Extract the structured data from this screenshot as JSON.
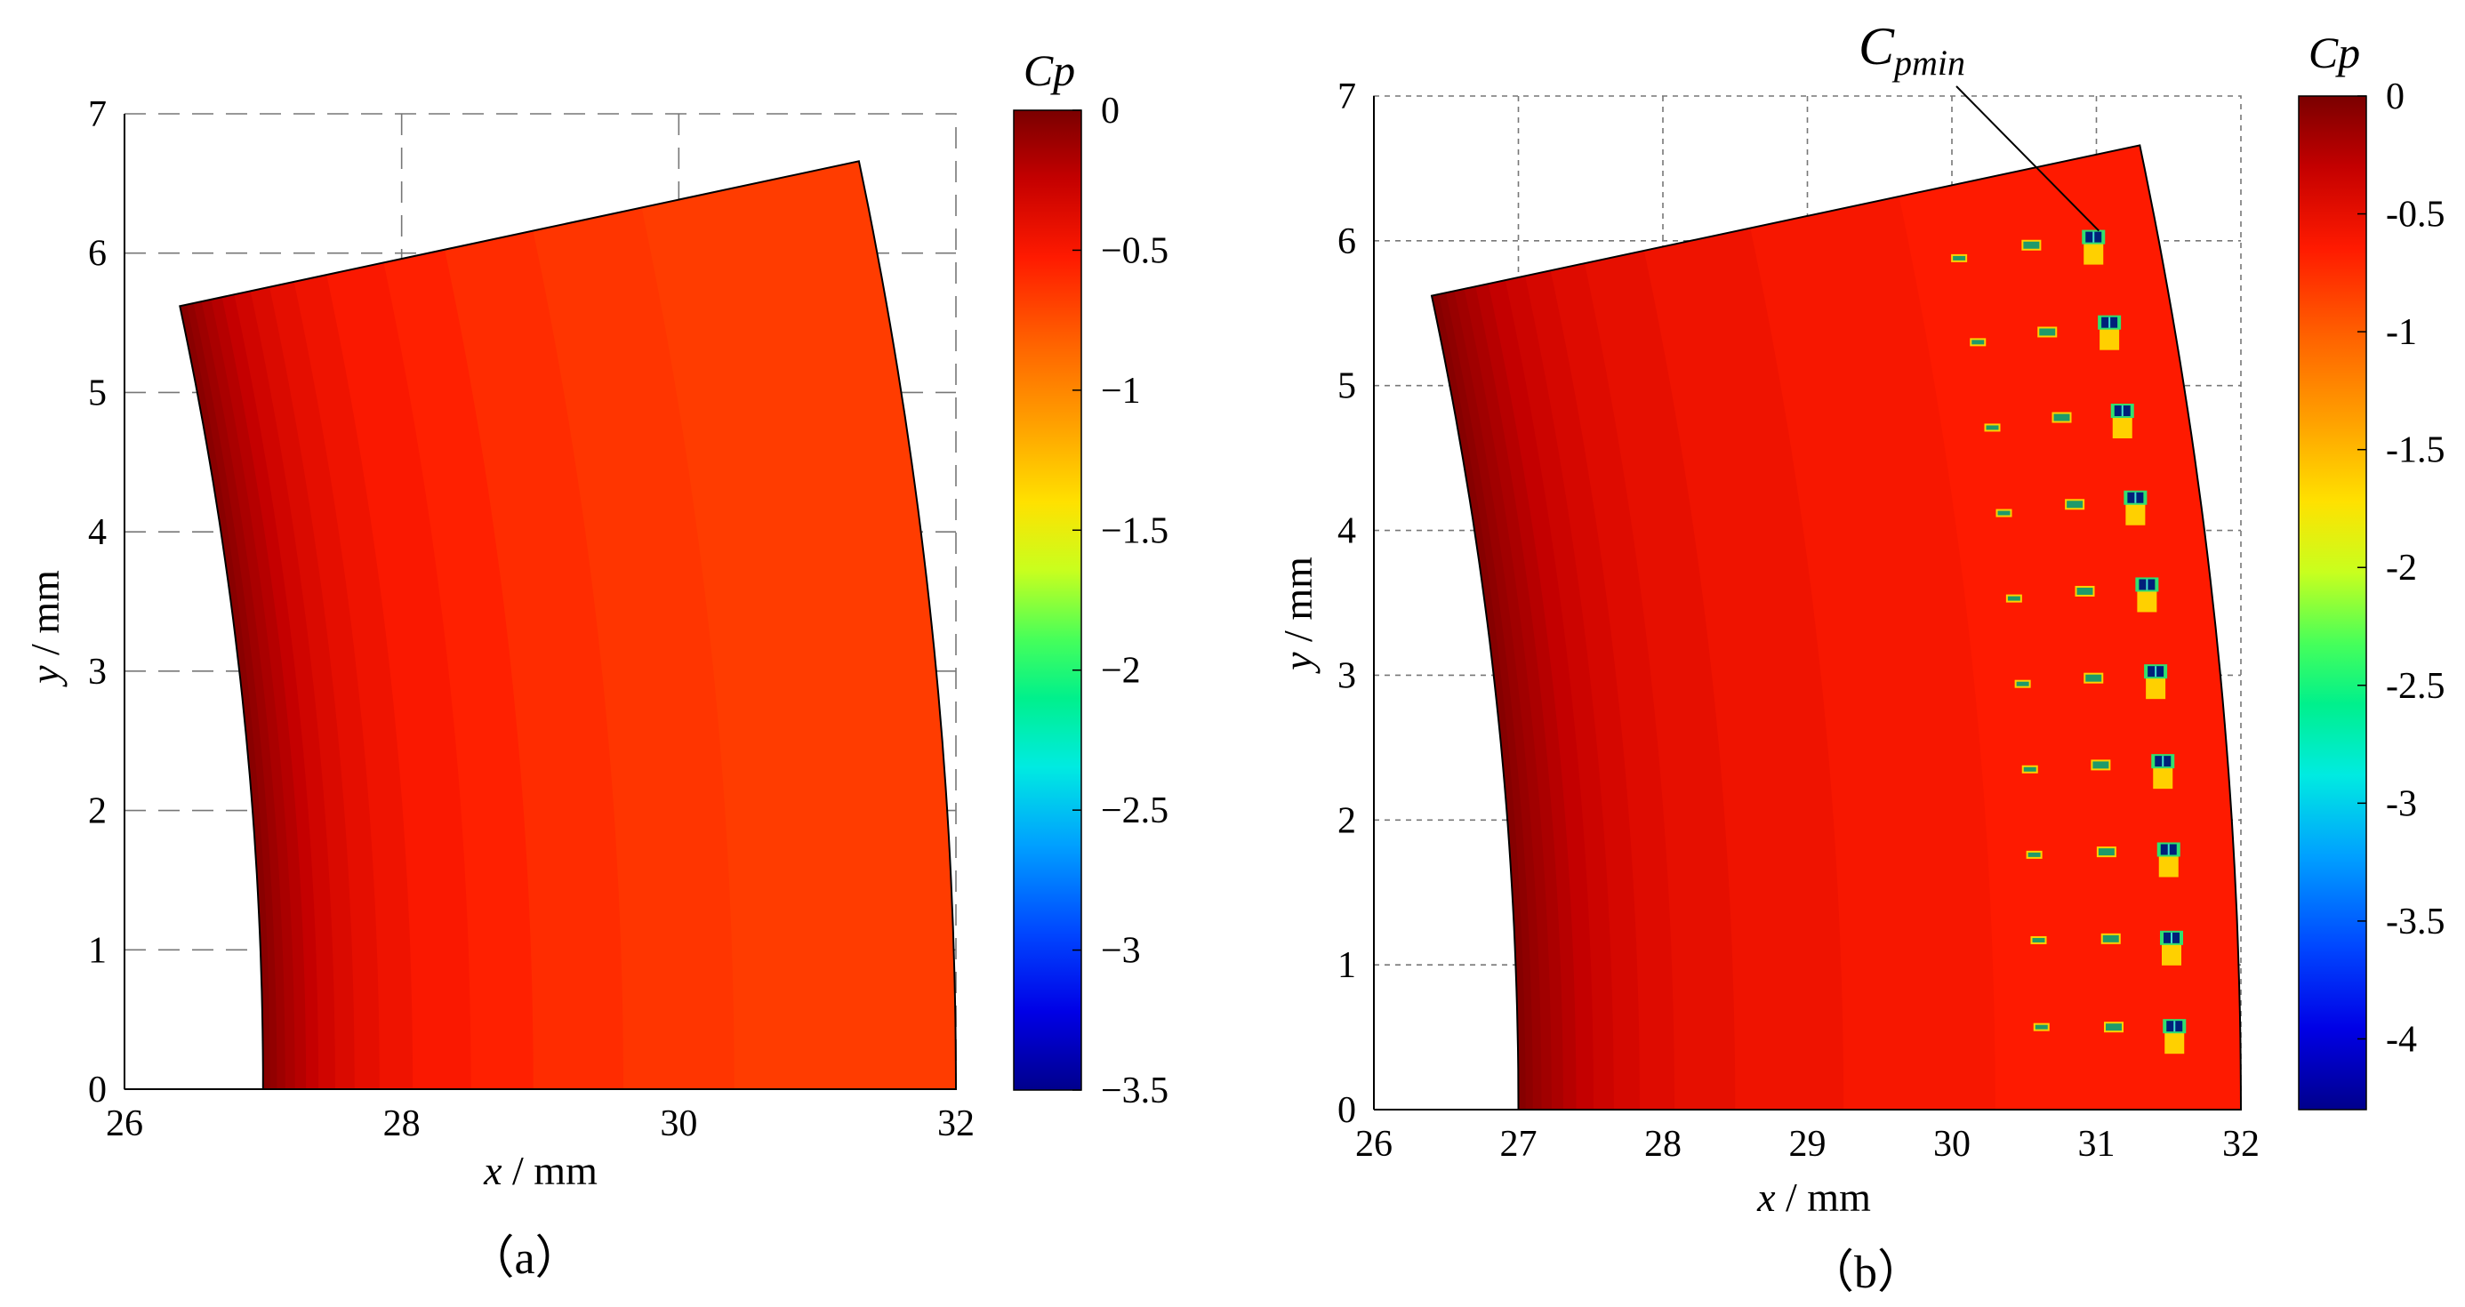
{
  "chart_data": [
    {
      "type": "heatmap",
      "panel_label": "（a）",
      "xlabel_var": "x",
      "xlabel_unit": " / mm",
      "ylabel_var": "y",
      "ylabel_unit": " / mm",
      "xlim": [
        26,
        32
      ],
      "ylim": [
        0,
        7
      ],
      "xticks": [
        "26",
        "28",
        "30",
        "32"
      ],
      "yticks": [
        "0",
        "1",
        "2",
        "3",
        "4",
        "5",
        "6",
        "7"
      ],
      "grid": "dashed",
      "colorbar": {
        "title": "Cp",
        "range": [
          -3.5,
          0
        ],
        "ticks": [
          "0",
          "−0.5",
          "−1",
          "−1.5",
          "−2",
          "−2.5",
          "−3",
          "−3.5"
        ],
        "tick_values": [
          0,
          -0.5,
          -1,
          -1.5,
          -2,
          -2.5,
          -3,
          -3.5
        ]
      },
      "domain": {
        "top_left": [
          26.4,
          5.62
        ],
        "top_right": [
          31.3,
          6.66
        ],
        "bottom_left": [
          27.0,
          0
        ],
        "bottom_right": [
          32.0,
          0
        ]
      },
      "bands": [
        {
          "x": 27.0,
          "cp": -0.02
        },
        {
          "x": 27.05,
          "cp": -0.05
        },
        {
          "x": 27.1,
          "cp": -0.08
        },
        {
          "x": 27.16,
          "cp": -0.12
        },
        {
          "x": 27.23,
          "cp": -0.16
        },
        {
          "x": 27.31,
          "cp": -0.2
        },
        {
          "x": 27.4,
          "cp": -0.25
        },
        {
          "x": 27.52,
          "cp": -0.3
        },
        {
          "x": 27.66,
          "cp": -0.35
        },
        {
          "x": 27.84,
          "cp": -0.4
        },
        {
          "x": 28.08,
          "cp": -0.45
        },
        {
          "x": 28.5,
          "cp": -0.5
        },
        {
          "x": 28.95,
          "cp": -0.55
        },
        {
          "x": 29.6,
          "cp": -0.6
        },
        {
          "x": 30.4,
          "cp": -0.64
        },
        {
          "x": 32.0,
          "cp": -0.67
        }
      ],
      "spots": []
    },
    {
      "type": "heatmap",
      "panel_label": "（b）",
      "xlabel_var": "x",
      "xlabel_unit": " / mm",
      "ylabel_var": "y",
      "ylabel_unit": " / mm",
      "xlim": [
        26,
        32
      ],
      "ylim": [
        0,
        7
      ],
      "xticks": [
        "26",
        "27",
        "28",
        "29",
        "30",
        "31",
        "32"
      ],
      "yticks": [
        "0",
        "1",
        "2",
        "3",
        "4",
        "5",
        "6",
        "7"
      ],
      "grid": "dotted",
      "colorbar": {
        "title": "Cp",
        "range": [
          -4.3,
          0
        ],
        "ticks": [
          "0",
          "-0.5",
          "-1",
          "-1.5",
          "-2",
          "-2.5",
          "-3",
          "-3.5",
          "-4"
        ],
        "tick_values": [
          0,
          -0.5,
          -1,
          -1.5,
          -2,
          -2.5,
          -3,
          -3.5,
          -4
        ]
      },
      "domain": {
        "top_left": [
          26.4,
          5.62
        ],
        "top_right": [
          31.3,
          6.66
        ],
        "bottom_left": [
          27.0,
          0
        ],
        "bottom_right": [
          32.0,
          0
        ]
      },
      "bands": [
        {
          "x": 27.0,
          "cp": -0.02
        },
        {
          "x": 27.05,
          "cp": -0.05
        },
        {
          "x": 27.1,
          "cp": -0.08
        },
        {
          "x": 27.16,
          "cp": -0.12
        },
        {
          "x": 27.23,
          "cp": -0.16
        },
        {
          "x": 27.31,
          "cp": -0.2
        },
        {
          "x": 27.4,
          "cp": -0.25
        },
        {
          "x": 27.52,
          "cp": -0.3
        },
        {
          "x": 27.66,
          "cp": -0.35
        },
        {
          "x": 27.84,
          "cp": -0.4
        },
        {
          "x": 28.08,
          "cp": -0.45
        },
        {
          "x": 28.5,
          "cp": -0.5
        },
        {
          "x": 29.25,
          "cp": -0.55
        },
        {
          "x": 30.3,
          "cp": -0.6
        },
        {
          "x": 32.0,
          "cp": -0.64
        }
      ],
      "spots": [
        {
          "x": 30.05,
          "y": 5.88,
          "size": "small"
        },
        {
          "x": 30.55,
          "y": 5.97,
          "size": "medium"
        },
        {
          "x": 30.98,
          "y": 6.02,
          "size": "large"
        },
        {
          "x": 30.18,
          "y": 5.3,
          "size": "small"
        },
        {
          "x": 30.66,
          "y": 5.37,
          "size": "medium"
        },
        {
          "x": 31.09,
          "y": 5.43,
          "size": "large"
        },
        {
          "x": 30.28,
          "y": 4.71,
          "size": "small"
        },
        {
          "x": 30.76,
          "y": 4.78,
          "size": "medium"
        },
        {
          "x": 31.18,
          "y": 4.82,
          "size": "large"
        },
        {
          "x": 30.36,
          "y": 4.12,
          "size": "small"
        },
        {
          "x": 30.85,
          "y": 4.18,
          "size": "medium"
        },
        {
          "x": 31.27,
          "y": 4.22,
          "size": "large"
        },
        {
          "x": 30.43,
          "y": 3.53,
          "size": "small"
        },
        {
          "x": 30.92,
          "y": 3.58,
          "size": "medium"
        },
        {
          "x": 31.35,
          "y": 3.62,
          "size": "large"
        },
        {
          "x": 30.49,
          "y": 2.94,
          "size": "small"
        },
        {
          "x": 30.98,
          "y": 2.98,
          "size": "medium"
        },
        {
          "x": 31.41,
          "y": 3.02,
          "size": "large"
        },
        {
          "x": 30.54,
          "y": 2.35,
          "size": "small"
        },
        {
          "x": 31.03,
          "y": 2.38,
          "size": "medium"
        },
        {
          "x": 31.46,
          "y": 2.4,
          "size": "large"
        },
        {
          "x": 30.57,
          "y": 1.76,
          "size": "small"
        },
        {
          "x": 31.07,
          "y": 1.78,
          "size": "medium"
        },
        {
          "x": 31.5,
          "y": 1.79,
          "size": "large"
        },
        {
          "x": 30.6,
          "y": 1.17,
          "size": "small"
        },
        {
          "x": 31.1,
          "y": 1.18,
          "size": "medium"
        },
        {
          "x": 31.52,
          "y": 1.18,
          "size": "large"
        },
        {
          "x": 30.62,
          "y": 0.57,
          "size": "small"
        },
        {
          "x": 31.12,
          "y": 0.57,
          "size": "medium"
        },
        {
          "x": 31.54,
          "y": 0.57,
          "size": "large"
        }
      ],
      "annotation": {
        "text_main": "C",
        "text_sub": "pmin",
        "target": [
          30.98,
          6.02
        ]
      }
    }
  ]
}
